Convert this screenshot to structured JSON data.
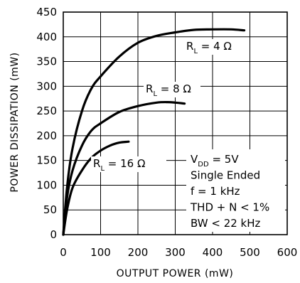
{
  "chart_data": {
    "type": "line",
    "xlabel": "OUTPUT POWER (mW)",
    "ylabel": "POWER DISSIPATION (mW)",
    "xlim": [
      0,
      600
    ],
    "ylim": [
      0,
      450
    ],
    "xticks": [
      0,
      100,
      200,
      300,
      400,
      500,
      600
    ],
    "yticks": [
      0,
      50,
      100,
      150,
      200,
      250,
      300,
      350,
      400,
      450
    ],
    "grid": true,
    "series": [
      {
        "name": "RL = 4Ω",
        "label_main": "R",
        "label_sub": "L",
        "label_rest": " = 4 Ω",
        "x": [
          0,
          10,
          25,
          50,
          75,
          100,
          150,
          200,
          250,
          300,
          350,
          400,
          450,
          485
        ],
        "y": [
          0,
          95,
          175,
          250,
          295,
          320,
          360,
          388,
          402,
          409,
          414,
          415,
          415,
          413
        ]
      },
      {
        "name": "RL = 8Ω",
        "label_main": "R",
        "label_sub": "L",
        "label_rest": " = 8 Ω",
        "x": [
          0,
          10,
          25,
          50,
          75,
          100,
          150,
          200,
          250,
          280,
          300,
          325
        ],
        "y": [
          0,
          75,
          130,
          180,
          210,
          225,
          248,
          260,
          267,
          268,
          267,
          265
        ]
      },
      {
        "name": "RL = 16Ω",
        "label_main": "R",
        "label_sub": "L",
        "label_rest": " = 16 Ω",
        "x": [
          0,
          10,
          25,
          50,
          75,
          100,
          125,
          150,
          175
        ],
        "y": [
          0,
          50,
          95,
          130,
          155,
          170,
          180,
          186,
          188
        ]
      }
    ],
    "annotations": [
      {
        "main": "V",
        "sub": "DD",
        "rest": " = 5V"
      },
      {
        "text": "Single Ended"
      },
      {
        "text": "f = 1 kHz"
      },
      {
        "text": "THD + N < 1%"
      },
      {
        "text": "BW < 22 kHz"
      }
    ]
  }
}
